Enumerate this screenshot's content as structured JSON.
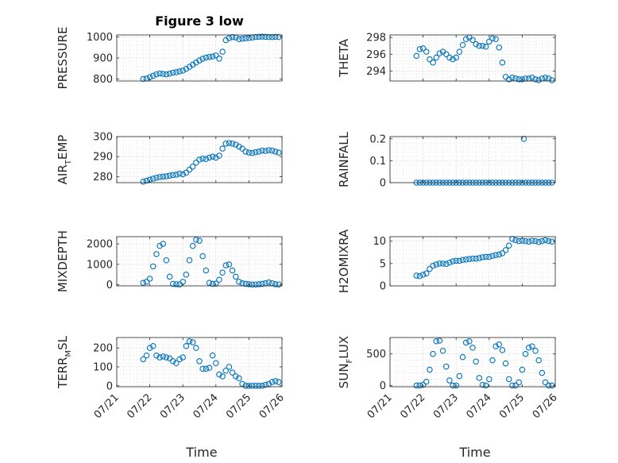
{
  "figure_title": "Figure 3 low",
  "marker_color": "#0072bd",
  "x_tick_labels": [
    "07/21",
    "07/22",
    "07/23",
    "07/24",
    "07/25",
    "07/26"
  ],
  "chart_data": [
    {
      "type": "scatter",
      "title": "Figure 3 low",
      "ylabel_main": "PRESSURE",
      "ylabel_sub": "",
      "ylabel_tail": "",
      "xlabel": "",
      "xlim": [
        0,
        5
      ],
      "ylim": [
        790,
        1010
      ],
      "yticks": [
        800,
        900,
        1000
      ],
      "grid": true,
      "x": [
        0.8,
        0.9,
        1.0,
        1.1,
        1.2,
        1.3,
        1.4,
        1.5,
        1.6,
        1.7,
        1.8,
        1.9,
        2.0,
        2.1,
        2.2,
        2.3,
        2.4,
        2.5,
        2.6,
        2.7,
        2.8,
        2.9,
        3.0,
        3.1,
        3.2,
        3.3,
        3.4,
        3.5,
        3.6,
        3.7,
        3.8,
        3.9,
        4.0,
        4.1,
        4.2,
        4.3,
        4.4,
        4.5,
        4.6,
        4.7,
        4.8,
        4.9
      ],
      "y": [
        800,
        802,
        808,
        815,
        822,
        826,
        824,
        822,
        825,
        830,
        832,
        836,
        840,
        848,
        858,
        868,
        878,
        888,
        896,
        902,
        905,
        907,
        912,
        897,
        930,
        985,
        995,
        1000,
        998,
        990,
        992,
        994,
        996,
        998,
        1000,
        1001,
        1002,
        1001,
        1000,
        1000,
        1001,
        1000
      ]
    },
    {
      "type": "scatter",
      "ylabel_main": "THETA",
      "ylabel_sub": "",
      "ylabel_tail": "",
      "xlabel": "",
      "xlim": [
        0,
        5
      ],
      "ylim": [
        292.8,
        298.3
      ],
      "yticks": [
        294,
        296,
        298
      ],
      "grid": true,
      "x": [
        0.8,
        0.9,
        1.0,
        1.1,
        1.2,
        1.3,
        1.4,
        1.5,
        1.6,
        1.7,
        1.8,
        1.9,
        2.0,
        2.1,
        2.2,
        2.3,
        2.4,
        2.5,
        2.6,
        2.7,
        2.8,
        2.9,
        3.0,
        3.1,
        3.2,
        3.3,
        3.4,
        3.5,
        3.6,
        3.7,
        3.8,
        3.9,
        4.0,
        4.1,
        4.2,
        4.3,
        4.4,
        4.5,
        4.6,
        4.7,
        4.8,
        4.9
      ],
      "y": [
        295.8,
        296.6,
        296.7,
        296.3,
        295.4,
        295.0,
        295.6,
        296.1,
        296.3,
        296.0,
        295.6,
        295.4,
        295.6,
        296.3,
        297.1,
        297.8,
        298.0,
        297.7,
        297.2,
        297.0,
        297.0,
        296.9,
        297.5,
        297.9,
        297.8,
        296.8,
        295.0,
        293.3,
        293.0,
        293.2,
        293.1,
        293.0,
        293.0,
        293.1,
        293.1,
        293.2,
        293.0,
        292.9,
        293.1,
        293.2,
        293.1,
        292.9
      ]
    },
    {
      "type": "scatter",
      "ylabel_main": "AIR",
      "ylabel_sub": "T",
      "ylabel_tail": "EMP",
      "xlabel": "",
      "xlim": [
        0,
        5
      ],
      "ylim": [
        277,
        300
      ],
      "yticks": [
        280,
        290,
        300
      ],
      "grid": true,
      "x": [
        0.8,
        0.9,
        1.0,
        1.1,
        1.2,
        1.3,
        1.4,
        1.5,
        1.6,
        1.7,
        1.8,
        1.9,
        2.0,
        2.1,
        2.2,
        2.3,
        2.4,
        2.5,
        2.6,
        2.7,
        2.8,
        2.9,
        3.0,
        3.1,
        3.2,
        3.3,
        3.4,
        3.5,
        3.6,
        3.7,
        3.8,
        3.9,
        4.0,
        4.1,
        4.2,
        4.3,
        4.4,
        4.5,
        4.6,
        4.7,
        4.8,
        4.9
      ],
      "y": [
        277.5,
        278.0,
        278.5,
        279.0,
        279.5,
        279.8,
        280.0,
        280.2,
        280.5,
        280.8,
        281.0,
        281.5,
        281.2,
        282.0,
        283.5,
        285.0,
        287.0,
        288.5,
        289.0,
        288.8,
        289.5,
        290.0,
        289.5,
        290.5,
        294.0,
        296.5,
        296.8,
        296.5,
        296.0,
        295.0,
        294.0,
        292.5,
        292.0,
        291.8,
        292.2,
        292.5,
        293.0,
        292.8,
        293.2,
        293.0,
        292.5,
        292.0
      ]
    },
    {
      "type": "scatter",
      "ylabel_main": "RAINFALL",
      "ylabel_sub": "",
      "ylabel_tail": "",
      "xlabel": "",
      "xlim": [
        0,
        5
      ],
      "ylim": [
        0,
        0.21
      ],
      "yticks": [
        0,
        0.1,
        0.2
      ],
      "grid": true,
      "x": [
        0.8,
        0.9,
        1.0,
        1.1,
        1.2,
        1.3,
        1.4,
        1.5,
        1.6,
        1.7,
        1.8,
        1.9,
        2.0,
        2.1,
        2.2,
        2.3,
        2.4,
        2.5,
        2.6,
        2.7,
        2.8,
        2.9,
        3.0,
        3.1,
        3.2,
        3.3,
        3.4,
        3.5,
        3.6,
        3.7,
        3.8,
        3.9,
        4.0,
        4.1,
        4.2,
        4.3,
        4.4,
        4.5,
        4.6,
        4.7,
        4.8,
        4.9,
        4.05
      ],
      "y": [
        0,
        0,
        0,
        0,
        0,
        0,
        0,
        0,
        0,
        0,
        0,
        0,
        0,
        0,
        0,
        0,
        0,
        0,
        0,
        0,
        0,
        0,
        0,
        0,
        0,
        0,
        0,
        0,
        0,
        0,
        0,
        0,
        0,
        0,
        0,
        0,
        0,
        0,
        0,
        0,
        0,
        0,
        0.2
      ]
    },
    {
      "type": "scatter",
      "ylabel_main": "MIXDEPTH",
      "ylabel_sub": "",
      "ylabel_tail": "",
      "xlabel": "",
      "xlim": [
        0,
        5
      ],
      "ylim": [
        -50,
        2350
      ],
      "yticks": [
        0,
        1000,
        2000
      ],
      "grid": true,
      "x": [
        0.8,
        0.9,
        1.0,
        1.1,
        1.2,
        1.3,
        1.4,
        1.5,
        1.6,
        1.7,
        1.8,
        1.9,
        2.0,
        2.1,
        2.2,
        2.3,
        2.4,
        2.5,
        2.6,
        2.7,
        2.8,
        2.9,
        3.0,
        3.1,
        3.2,
        3.3,
        3.4,
        3.5,
        3.6,
        3.7,
        3.8,
        3.9,
        4.0,
        4.1,
        4.2,
        4.3,
        4.4,
        4.5,
        4.6,
        4.7,
        4.8,
        4.9
      ],
      "y": [
        100,
        150,
        300,
        900,
        1500,
        1900,
        2000,
        1200,
        400,
        50,
        30,
        20,
        150,
        500,
        1200,
        1900,
        2200,
        2150,
        1400,
        700,
        100,
        50,
        60,
        250,
        600,
        950,
        1000,
        700,
        400,
        150,
        80,
        50,
        30,
        20,
        20,
        30,
        50,
        80,
        120,
        80,
        30,
        20
      ]
    },
    {
      "type": "scatter",
      "ylabel_main": "H2OMIXRA",
      "ylabel_sub": "",
      "ylabel_tail": "",
      "xlabel": "",
      "xlim": [
        0,
        5
      ],
      "ylim": [
        0,
        11
      ],
      "yticks": [
        0,
        5,
        10
      ],
      "grid": true,
      "x": [
        0.8,
        0.9,
        1.0,
        1.1,
        1.2,
        1.3,
        1.4,
        1.5,
        1.6,
        1.7,
        1.8,
        1.9,
        2.0,
        2.1,
        2.2,
        2.3,
        2.4,
        2.5,
        2.6,
        2.7,
        2.8,
        2.9,
        3.0,
        3.1,
        3.2,
        3.3,
        3.4,
        3.5,
        3.6,
        3.7,
        3.8,
        3.9,
        4.0,
        4.1,
        4.2,
        4.3,
        4.4,
        4.5,
        4.6,
        4.7,
        4.8,
        4.9
      ],
      "y": [
        2.3,
        2.2,
        2.5,
        2.8,
        3.8,
        4.5,
        4.8,
        5.0,
        5.0,
        4.9,
        5.2,
        5.5,
        5.6,
        5.6,
        5.8,
        5.9,
        6.0,
        6.1,
        6.1,
        6.2,
        6.4,
        6.5,
        6.5,
        6.7,
        6.9,
        7.0,
        7.3,
        8.0,
        9.0,
        10.5,
        10.2,
        10.0,
        10.1,
        10.0,
        9.9,
        10.1,
        10.0,
        9.8,
        10.0,
        10.2,
        10.0,
        9.9
      ]
    },
    {
      "type": "scatter",
      "ylabel_main": "TERR",
      "ylabel_sub": "M",
      "ylabel_tail": "SL",
      "xlabel": "Time",
      "xlim": [
        0,
        5
      ],
      "ylim": [
        -5,
        255
      ],
      "yticks": [
        0,
        100,
        200
      ],
      "grid": true,
      "x": [
        0.8,
        0.9,
        1.0,
        1.1,
        1.2,
        1.3,
        1.4,
        1.5,
        1.6,
        1.7,
        1.8,
        1.9,
        2.0,
        2.1,
        2.2,
        2.3,
        2.4,
        2.5,
        2.6,
        2.7,
        2.8,
        2.9,
        3.0,
        3.1,
        3.2,
        3.3,
        3.4,
        3.5,
        3.6,
        3.7,
        3.8,
        3.9,
        4.0,
        4.1,
        4.2,
        4.3,
        4.4,
        4.5,
        4.6,
        4.7,
        4.8,
        4.9
      ],
      "y": [
        140,
        160,
        200,
        210,
        160,
        150,
        155,
        150,
        145,
        130,
        120,
        140,
        150,
        210,
        235,
        230,
        200,
        130,
        90,
        90,
        95,
        160,
        120,
        60,
        50,
        80,
        100,
        70,
        50,
        40,
        10,
        0,
        0,
        0,
        0,
        0,
        0,
        5,
        10,
        20,
        25,
        20
      ]
    },
    {
      "type": "scatter",
      "ylabel_main": "SUN",
      "ylabel_sub": "F",
      "ylabel_tail": "LUX",
      "xlabel": "Time",
      "xlim": [
        0,
        5
      ],
      "ylim": [
        -20,
        760
      ],
      "yticks": [
        0,
        500
      ],
      "grid": true,
      "x": [
        0.8,
        0.9,
        1.0,
        1.1,
        1.2,
        1.3,
        1.4,
        1.5,
        1.6,
        1.7,
        1.8,
        1.9,
        2.0,
        2.1,
        2.2,
        2.3,
        2.4,
        2.5,
        2.6,
        2.7,
        2.8,
        2.9,
        3.0,
        3.1,
        3.2,
        3.3,
        3.4,
        3.5,
        3.6,
        3.7,
        3.8,
        3.9,
        4.0,
        4.1,
        4.2,
        4.3,
        4.4,
        4.5,
        4.6,
        4.7,
        4.8,
        4.9
      ],
      "y": [
        0,
        0,
        10,
        60,
        250,
        500,
        700,
        710,
        550,
        300,
        80,
        0,
        0,
        150,
        450,
        680,
        700,
        600,
        380,
        120,
        10,
        0,
        100,
        400,
        620,
        650,
        560,
        350,
        100,
        0,
        0,
        50,
        250,
        500,
        600,
        620,
        550,
        400,
        200,
        50,
        0,
        0
      ]
    }
  ]
}
